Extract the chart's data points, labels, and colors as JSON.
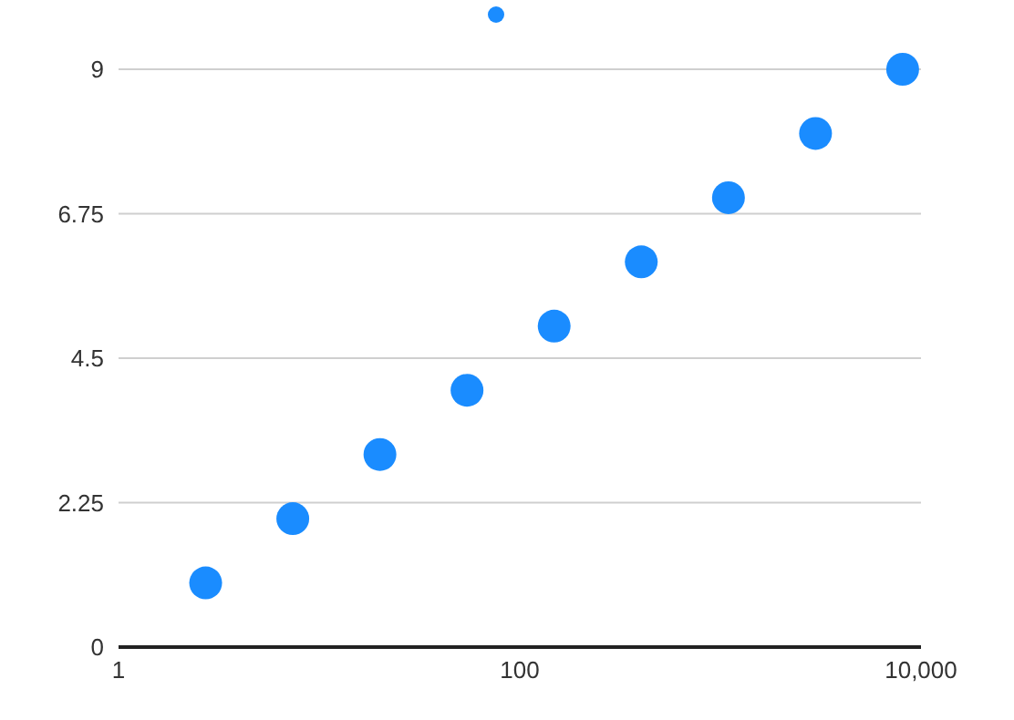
{
  "chart_data": {
    "type": "scatter",
    "x": [
      2.718,
      7.389,
      20.09,
      54.6,
      148.4,
      403.4,
      1097,
      2981,
      8103
    ],
    "series": [
      {
        "color": "#1a8cff",
        "values": [
          1,
          2,
          3,
          4,
          5,
          6,
          7,
          8,
          9
        ]
      }
    ],
    "xlim": [
      1,
      10000
    ],
    "xticks": [
      1,
      100,
      {
        "value": 10000,
        "label": "10,000"
      }
    ],
    "ylim": [
      0,
      9
    ],
    "yticks": [
      0,
      2.25,
      4.5,
      6.75,
      9
    ],
    "log": "x",
    "grid": "y",
    "marker": "circle"
  }
}
